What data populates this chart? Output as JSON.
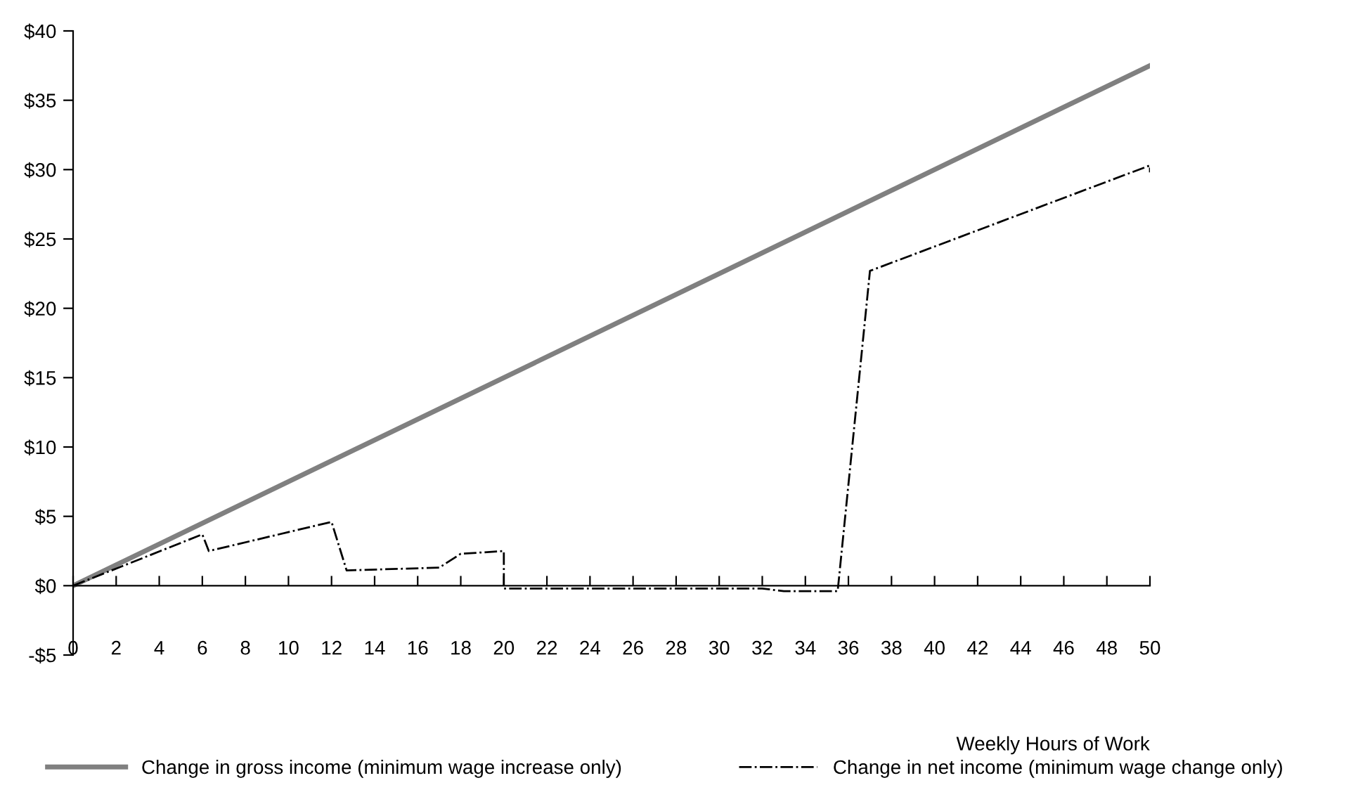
{
  "chart_data": {
    "type": "line",
    "xlabel": "Weekly Hours of Work",
    "xlim": [
      0,
      50
    ],
    "xticks": [
      0,
      2,
      4,
      6,
      8,
      10,
      12,
      14,
      16,
      18,
      20,
      22,
      24,
      26,
      28,
      30,
      32,
      34,
      36,
      38,
      40,
      42,
      44,
      46,
      48,
      50
    ],
    "ylim": [
      -5,
      40
    ],
    "yticks": [
      {
        "value": -5,
        "label": "-$5"
      },
      {
        "value": 0,
        "label": "$0"
      },
      {
        "value": 5,
        "label": "$5"
      },
      {
        "value": 10,
        "label": "$10"
      },
      {
        "value": 15,
        "label": "$15"
      },
      {
        "value": 20,
        "label": "$20"
      },
      {
        "value": 25,
        "label": "$25"
      },
      {
        "value": 30,
        "label": "$30"
      },
      {
        "value": 35,
        "label": "$35"
      },
      {
        "value": 40,
        "label": "$40"
      }
    ],
    "legend": "bottom",
    "marker": "none",
    "series": [
      {
        "name": "Change in gross income (minimum wage increase only)",
        "color": "#808080",
        "line_style": "solid",
        "x": [
          0,
          50
        ],
        "values": [
          0,
          37.5
        ]
      },
      {
        "name": "Change in net income (minimum wage change only)",
        "color": "#000000",
        "line_style": "dashdot",
        "x": [
          0,
          6,
          6.3,
          12,
          12.7,
          17,
          18,
          20,
          20,
          32,
          33,
          35.5,
          37,
          50,
          50
        ],
        "values": [
          0,
          3.7,
          2.5,
          4.6,
          1.1,
          1.3,
          2.3,
          2.5,
          -0.2,
          -0.2,
          -0.4,
          -0.4,
          22.7,
          30.3,
          29.8
        ]
      }
    ]
  }
}
